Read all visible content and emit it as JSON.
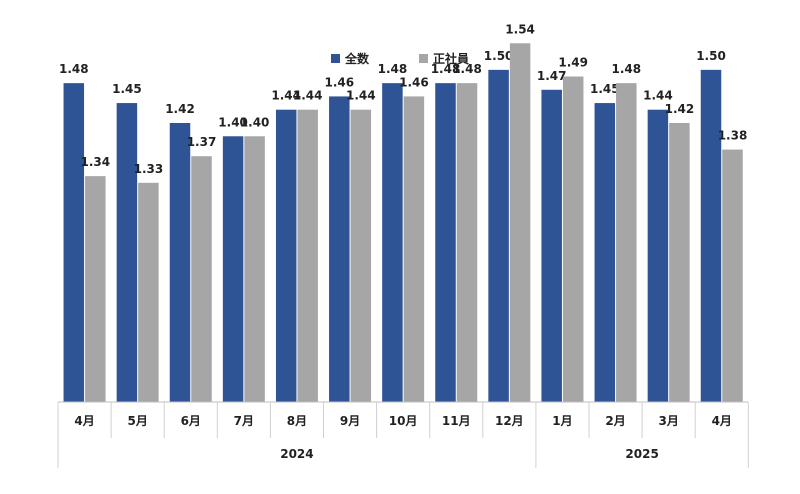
{
  "legend": {
    "series1": "全数",
    "series2": "正社員"
  },
  "colors": {
    "series1": "#2e5496",
    "series2": "#a6a6a6"
  },
  "chart_data": {
    "type": "bar",
    "title": "",
    "xlabel": "",
    "ylabel": "",
    "categories": [
      "4月",
      "5月",
      "6月",
      "7月",
      "8月",
      "9月",
      "10月",
      "11月",
      "12月",
      "1月",
      "2月",
      "3月",
      "4月"
    ],
    "groups": [
      {
        "label": "2024",
        "count": 9
      },
      {
        "label": "2025",
        "count": 4
      }
    ],
    "series": [
      {
        "name": "全数",
        "values": [
          1.48,
          1.45,
          1.42,
          1.4,
          1.44,
          1.46,
          1.48,
          1.48,
          1.5,
          1.47,
          1.45,
          1.44,
          1.5
        ]
      },
      {
        "name": "正社員",
        "values": [
          1.34,
          1.33,
          1.37,
          1.4,
          1.44,
          1.44,
          1.46,
          1.48,
          1.54,
          1.49,
          1.48,
          1.42,
          1.38
        ]
      }
    ],
    "ylim": [
      1.0,
      1.6
    ],
    "grid": false,
    "legend_position": "top"
  }
}
